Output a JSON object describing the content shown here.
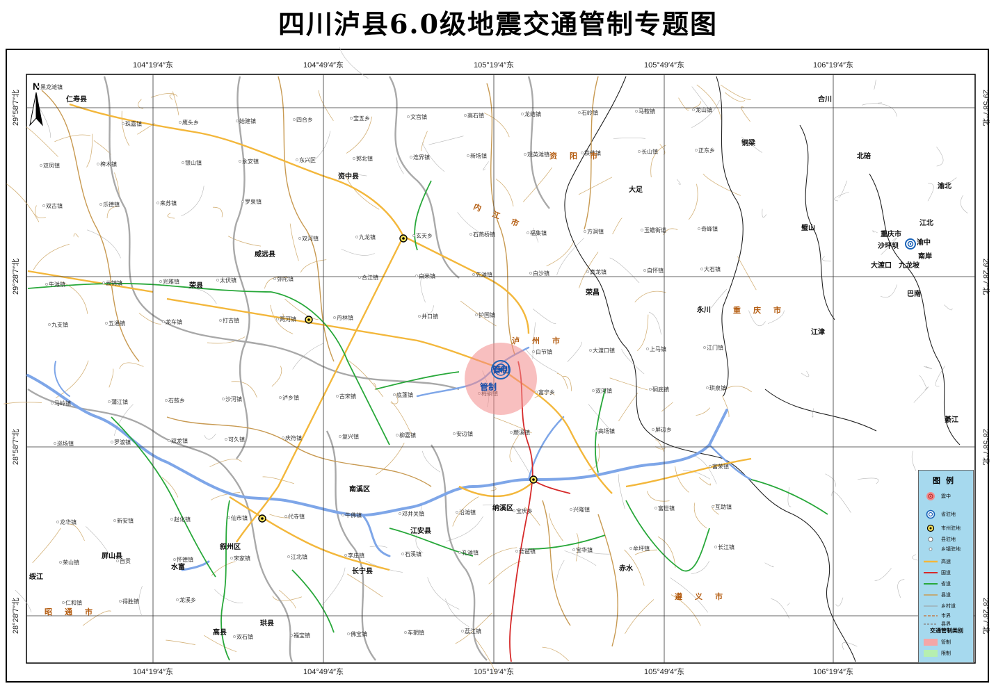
{
  "title": "四川泸县6.0级地震交通管制专题图",
  "coords": {
    "lon": [
      "104°19′4″东",
      "104°49′4″东",
      "105°19′4″东",
      "105°49′4″东",
      "106°19′4″东"
    ],
    "lat": [
      "29°58′7″北",
      "29°28′7″北",
      "28°58′7″北",
      "28°28′7″北"
    ]
  },
  "north": "N",
  "zone": {
    "label_a": "管制",
    "label_b": "管制",
    "status": "red"
  },
  "prefectures": [
    "资阳市",
    "内江市",
    "泸州市",
    "重庆市",
    "遵义市",
    "昭通市"
  ],
  "counties": [
    "仁寿县",
    "资中县",
    "威远县",
    "荣县",
    "南溪区",
    "江安县",
    "长宁县",
    "珙县",
    "高县",
    "屏山县",
    "水富",
    "叙州区",
    "纳溪区",
    "赤水",
    "荣昌",
    "大足",
    "铜梁",
    "合川",
    "北碚",
    "渝北",
    "璧山",
    "沙坪坝",
    "渝中",
    "江北",
    "南岸",
    "大渡口",
    "九龙坡",
    "巴南",
    "永川",
    "江津",
    "綦江",
    "重庆市",
    "绥江"
  ],
  "towns": [
    "黑龙滩镇",
    "珠嘉镇",
    "鹰头乡",
    "始建镇",
    "四合乡",
    "宝五乡",
    "文宫镇",
    "高石镇",
    "龙结镇",
    "石岭镇",
    "马鞍镇",
    "龙山镇",
    "双凤镇",
    "椑木镇",
    "银山镇",
    "永安镇",
    "东兴区",
    "郭北镇",
    "连界镇",
    "新场镇",
    "观英滩镇",
    "铁佛镇",
    "长山镇",
    "正东乡",
    "双古镇",
    "乐德镇",
    "来苏镇",
    "罗泉镇",
    "双河镇",
    "九龙镇",
    "玄天乡",
    "石燕桥镇",
    "福集镇",
    "方洞镇",
    "玉蟾街道",
    "奇峰镇",
    "牛滩镇",
    "云锦镇",
    "兆雅镇",
    "太伏镇",
    "弥陀镇",
    "合江镇",
    "白米镇",
    "先滩镇",
    "白沙镇",
    "真龙镇",
    "自怀镇",
    "大石镇",
    "九支镇",
    "五通镇",
    "龙车镇",
    "打古镇",
    "两河镇",
    "丹林镇",
    "井口镇",
    "护国镇",
    "白节镇",
    "大渡口镇",
    "上马镇",
    "江门镇",
    "马岭镇",
    "蒲江镇",
    "石鼓乡",
    "沙河镇",
    "泸乡镇",
    "古宋镇",
    "底蓬镇",
    "梅硐镇",
    "富宁乡",
    "双河镇",
    "硐底镇",
    "珙泉镇",
    "巡场镇",
    "罗渡镇",
    "双龙镇",
    "可久镇",
    "庆符镇",
    "复兴镇",
    "柳嘉镇",
    "安边镇",
    "蕨溪镇",
    "高场镇",
    "屏边乡",
    "富荣镇",
    "龙华镇",
    "新安镇",
    "赵化镇",
    "仙市镇",
    "代寺镇",
    "牛佛镇",
    "邓井关镇",
    "沿滩镇",
    "宝庆乡",
    "兴隆镇",
    "富世镇",
    "互助镇",
    "荣山镇",
    "自贡",
    "怀德镇",
    "宋家镇",
    "江北镇",
    "李庄镇",
    "石溪镇",
    "孔滩镇",
    "琵琶镇",
    "宝华镇",
    "牟坪镇",
    "长江镇",
    "仁和镇",
    "得胜镇",
    "龙溪乡",
    "双石镇",
    "福宝镇",
    "佛宝镇",
    "车辋镇",
    "荔江镇"
  ],
  "legend": {
    "title": "图例",
    "items": [
      {
        "label": "震中",
        "sym": "epicenter-icon"
      },
      {
        "label": "省驻地",
        "sym": "capital-icon"
      },
      {
        "label": "市州驻地",
        "sym": "city-icon"
      },
      {
        "label": "县驻地",
        "sym": "county-icon"
      },
      {
        "label": "乡镇驻地",
        "sym": "town-icon"
      },
      {
        "label": "高速",
        "sym": "expressway-line",
        "color": "#f3b73b"
      },
      {
        "label": "国道",
        "sym": "national-road-line",
        "color": "#d62a2a"
      },
      {
        "label": "省道",
        "sym": "provincial-road-line",
        "color": "#28a83a"
      },
      {
        "label": "县道",
        "sym": "county-road-line",
        "color": "#c89a52"
      },
      {
        "label": "乡村道",
        "sym": "village-road-line",
        "color": "#9a9a9a"
      },
      {
        "label": "市界",
        "sym": "city-boundary-line",
        "color": "#c07a4a"
      },
      {
        "label": "县界",
        "sym": "county-boundary-line",
        "color": "#8a8a8a"
      }
    ],
    "category_title": "交通管制类别",
    "categories": [
      {
        "label": "管制",
        "color": "#f5a6a6"
      },
      {
        "label": "限制",
        "color": "#b6efb0"
      }
    ]
  },
  "colors": {
    "expressway": "#f3b73b",
    "national": "#d62a2a",
    "provincial": "#28a83a",
    "county": "#c89a52",
    "village": "#9a9a9a",
    "river": "#7ea6e8",
    "boundary": "#c07a4a",
    "prefecture_label": "#b45c10",
    "legend_bg": "#a6d9ee"
  }
}
